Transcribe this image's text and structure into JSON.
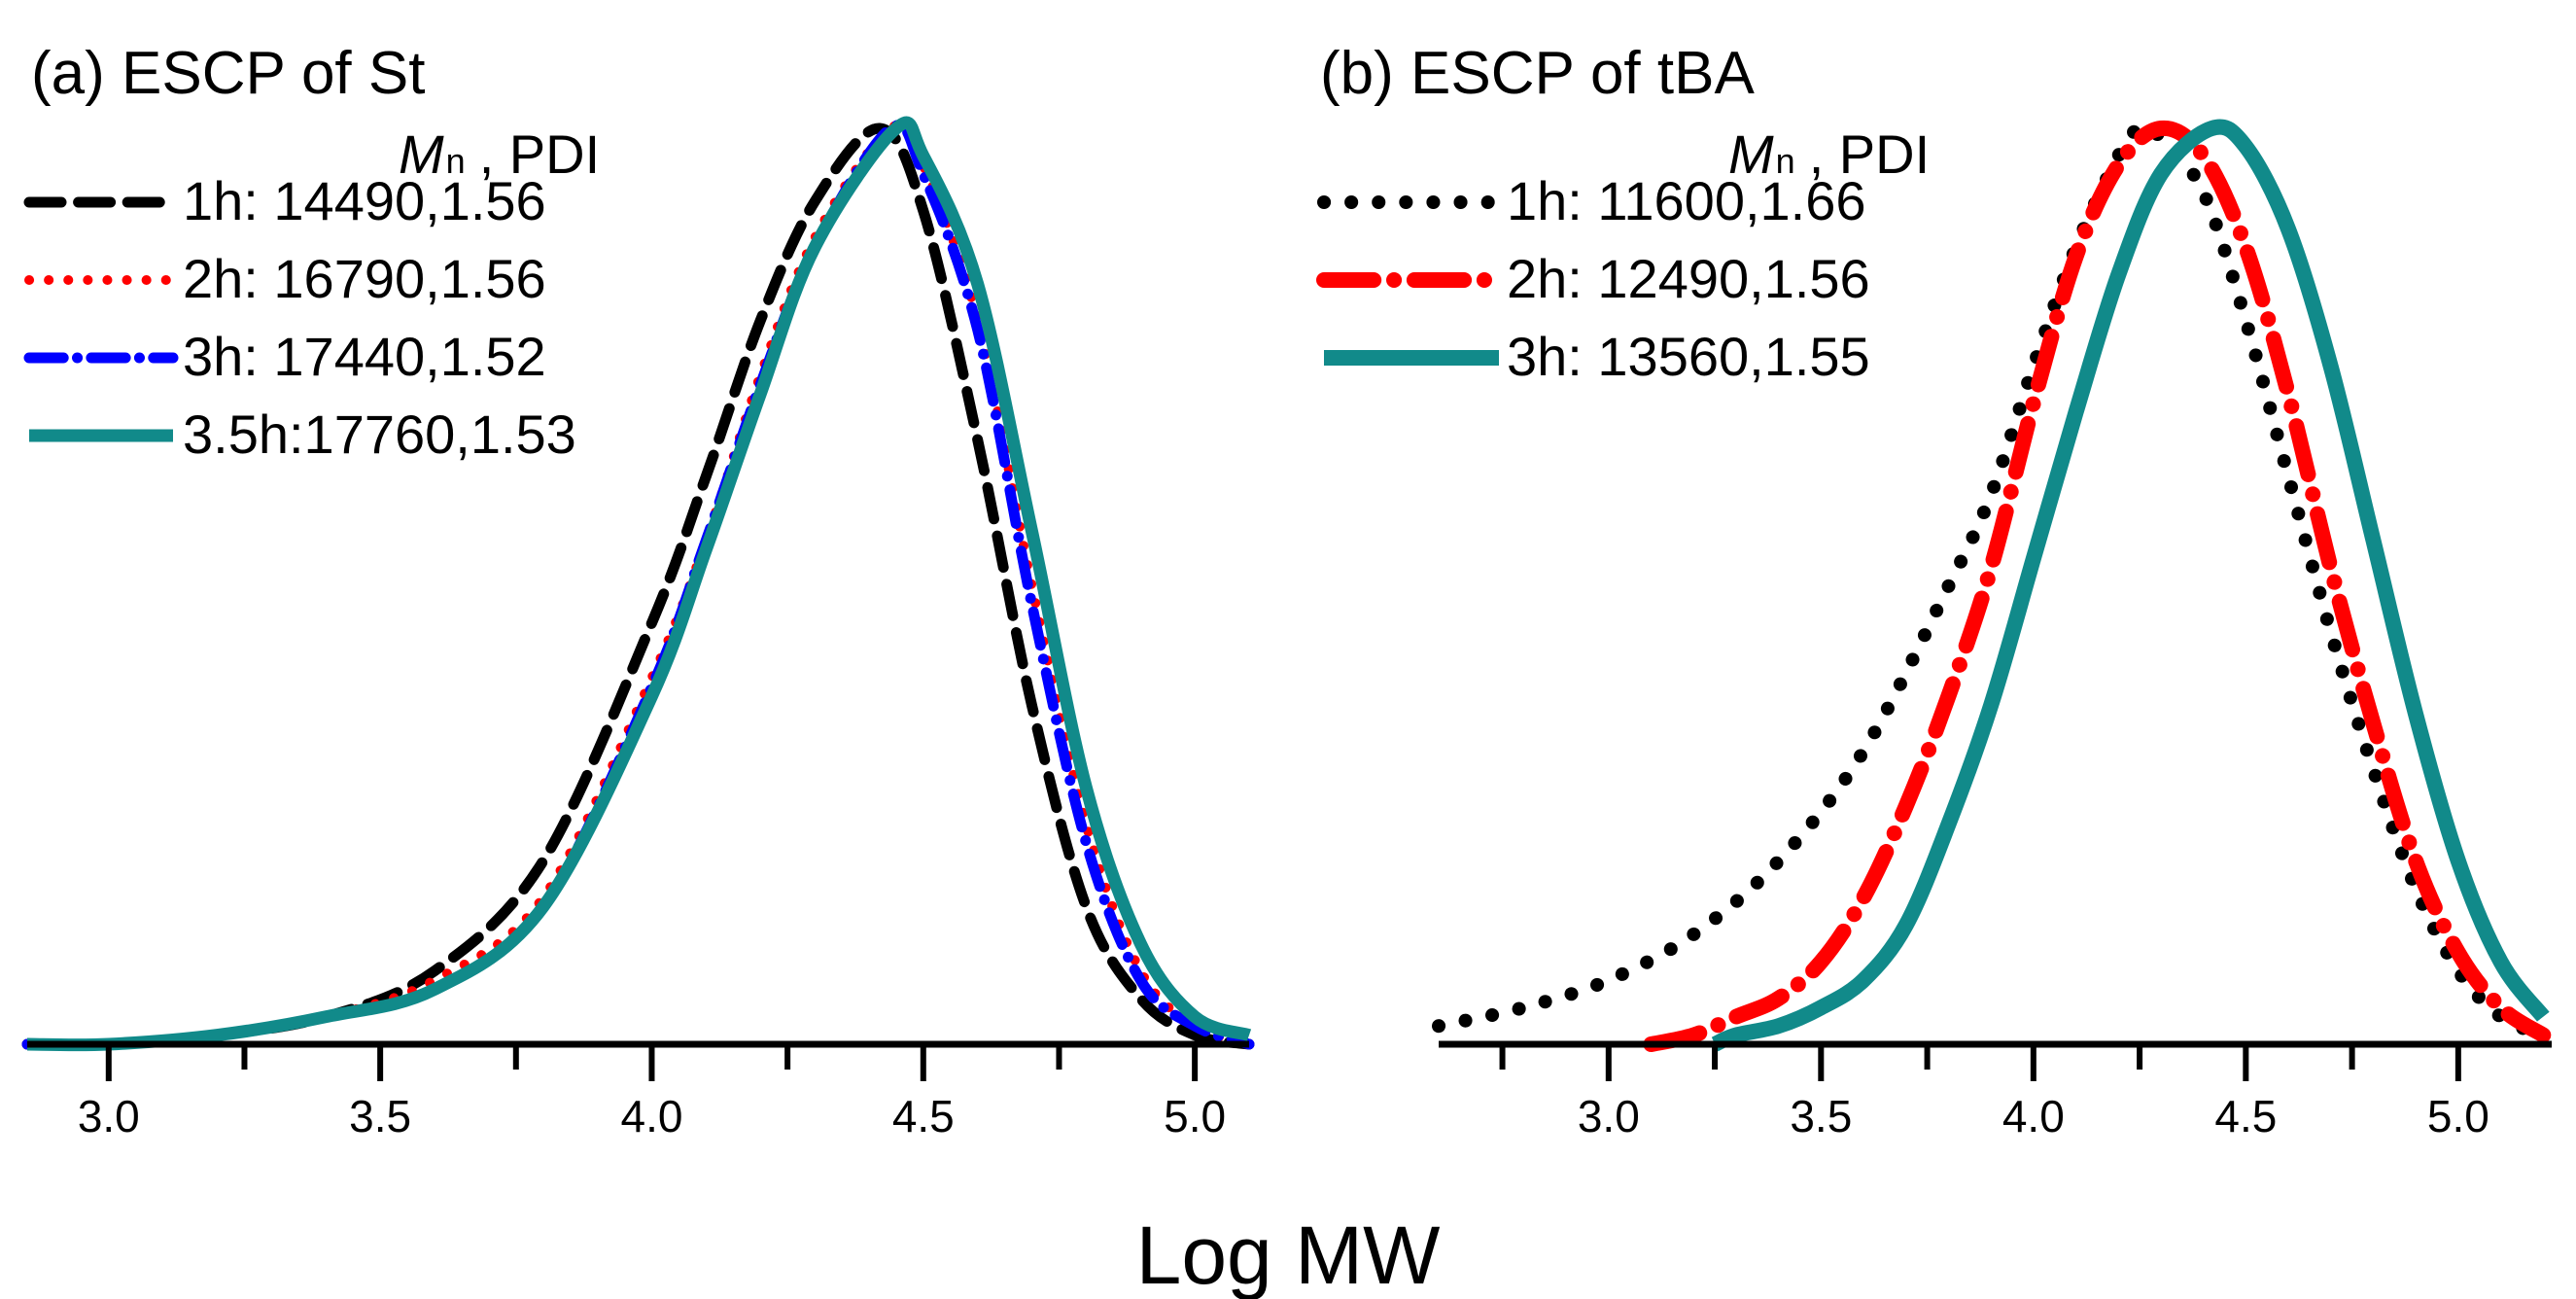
{
  "chart_data": [
    {
      "type": "line",
      "title": "(a) ESCP of St",
      "xlabel": "Log MW",
      "ylabel": "",
      "xlim": [
        2.85,
        5.1
      ],
      "ylim": [
        0,
        1
      ],
      "xticks": [
        "3.0",
        "3.5",
        "4.0",
        "4.5",
        "5.0"
      ],
      "legend_header": {
        "mn_symbol": "M",
        "mn_subscript": "n",
        "pdi": ", PDI"
      },
      "legend_position": "top-left",
      "series": [
        {
          "name": "1h: 14490,1.56",
          "color": "#000000",
          "style": "dashed",
          "width": 11,
          "x": [
            2.85,
            3.0,
            3.2,
            3.4,
            3.6,
            3.8,
            4.0,
            4.1,
            4.2,
            4.3,
            4.42,
            4.5,
            4.6,
            4.7,
            4.8,
            4.9,
            5.0,
            5.1
          ],
          "y": [
            0.0,
            0.0,
            0.01,
            0.03,
            0.08,
            0.2,
            0.46,
            0.62,
            0.79,
            0.92,
            1.0,
            0.91,
            0.66,
            0.37,
            0.15,
            0.05,
            0.01,
            0.0
          ]
        },
        {
          "name": "2h: 16790,1.56",
          "color": "#ff0000",
          "style": "dotted",
          "width": 10,
          "x": [
            2.85,
            3.0,
            3.2,
            3.4,
            3.6,
            3.8,
            4.0,
            4.1,
            4.2,
            4.3,
            4.44,
            4.5,
            4.6,
            4.7,
            4.8,
            4.9,
            5.0,
            5.1
          ],
          "y": [
            0.0,
            0.0,
            0.01,
            0.03,
            0.07,
            0.16,
            0.4,
            0.55,
            0.73,
            0.88,
            1.0,
            0.96,
            0.79,
            0.5,
            0.24,
            0.08,
            0.02,
            0.0
          ]
        },
        {
          "name": "3h: 17440,1.52",
          "color": "#0000ff",
          "style": "dashdot",
          "width": 11,
          "x": [
            2.85,
            3.0,
            3.2,
            3.4,
            3.6,
            3.8,
            4.0,
            4.1,
            4.2,
            4.3,
            4.44,
            4.5,
            4.6,
            4.7,
            4.8,
            4.9,
            5.0,
            5.1
          ],
          "y": [
            0.0,
            0.0,
            0.01,
            0.03,
            0.06,
            0.15,
            0.39,
            0.55,
            0.72,
            0.87,
            1.0,
            0.95,
            0.78,
            0.48,
            0.22,
            0.07,
            0.02,
            0.0
          ]
        },
        {
          "name": "3.5h:17760,1.53",
          "color": "#118a8a",
          "style": "solid",
          "width": 13,
          "x": [
            2.85,
            3.0,
            3.2,
            3.4,
            3.6,
            3.8,
            4.0,
            4.1,
            4.2,
            4.3,
            4.45,
            4.5,
            4.6,
            4.7,
            4.8,
            4.9,
            5.0,
            5.1
          ],
          "y": [
            0.0,
            0.0,
            0.01,
            0.03,
            0.06,
            0.15,
            0.38,
            0.54,
            0.71,
            0.87,
            1.0,
            0.97,
            0.83,
            0.56,
            0.28,
            0.11,
            0.03,
            0.01
          ]
        }
      ]
    },
    {
      "type": "line",
      "title": "(b) ESCP of tBA",
      "xlabel": "Log MW",
      "ylabel": "",
      "xlim": [
        2.6,
        5.22
      ],
      "ylim": [
        0,
        1
      ],
      "xticks": [
        "3.0",
        "3.5",
        "4.0",
        "4.5",
        "5.0"
      ],
      "legend_header": {
        "mn_symbol": "M",
        "mn_subscript": "n",
        "pdi": ", PDI"
      },
      "legend_position": "top-left",
      "series": [
        {
          "name": "1h: 11600,1.66",
          "color": "#000000",
          "style": "dotted",
          "width": 14,
          "x": [
            2.6,
            2.8,
            3.0,
            3.2,
            3.4,
            3.6,
            3.8,
            3.9,
            4.0,
            4.1,
            4.2,
            4.25,
            4.3,
            4.4,
            4.5,
            4.6,
            4.7,
            4.8,
            4.9,
            5.0,
            5.1,
            5.2
          ],
          "y": [
            0.02,
            0.04,
            0.07,
            0.12,
            0.2,
            0.32,
            0.5,
            0.6,
            0.74,
            0.87,
            0.97,
            1.0,
            0.99,
            0.93,
            0.79,
            0.62,
            0.45,
            0.3,
            0.17,
            0.08,
            0.03,
            0.01
          ]
        },
        {
          "name": "2h: 12490,1.56",
          "color": "#ff0000",
          "style": "dashdot",
          "width": 16,
          "x": [
            3.1,
            3.2,
            3.3,
            3.4,
            3.5,
            3.6,
            3.7,
            3.8,
            3.9,
            4.0,
            4.1,
            4.2,
            4.3,
            4.4,
            4.5,
            4.6,
            4.7,
            4.8,
            4.9,
            5.0,
            5.1,
            5.2
          ],
          "y": [
            0.0,
            0.01,
            0.03,
            0.05,
            0.09,
            0.16,
            0.26,
            0.38,
            0.52,
            0.7,
            0.86,
            0.96,
            1.0,
            0.97,
            0.87,
            0.71,
            0.52,
            0.35,
            0.2,
            0.1,
            0.04,
            0.01
          ]
        },
        {
          "name": "3h: 13560,1.55",
          "color": "#118a8a",
          "style": "solid",
          "width": 16,
          "x": [
            3.25,
            3.3,
            3.4,
            3.5,
            3.6,
            3.7,
            3.8,
            3.9,
            4.0,
            4.1,
            4.2,
            4.3,
            4.42,
            4.5,
            4.6,
            4.7,
            4.8,
            4.9,
            5.0,
            5.1,
            5.2
          ],
          "y": [
            0.0,
            0.01,
            0.02,
            0.04,
            0.07,
            0.13,
            0.24,
            0.37,
            0.53,
            0.69,
            0.84,
            0.95,
            1.0,
            0.98,
            0.89,
            0.74,
            0.55,
            0.36,
            0.2,
            0.09,
            0.03
          ]
        }
      ]
    }
  ]
}
